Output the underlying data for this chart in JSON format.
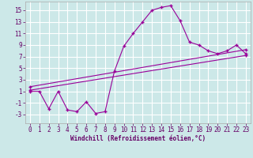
{
  "xlabel": "Windchill (Refroidissement éolien,°C)",
  "background_color": "#cce8e8",
  "grid_color": "#b8d8d8",
  "line_color": "#990099",
  "x_ticks": [
    0,
    1,
    2,
    3,
    4,
    5,
    6,
    7,
    8,
    9,
    10,
    11,
    12,
    13,
    14,
    15,
    16,
    17,
    18,
    19,
    20,
    21,
    22,
    23
  ],
  "y_ticks": [
    -3,
    -1,
    1,
    3,
    5,
    7,
    9,
    11,
    13,
    15
  ],
  "ylim": [
    -4.5,
    16.5
  ],
  "xlim": [
    -0.5,
    23.5
  ],
  "line1_x": [
    0,
    1,
    2,
    3,
    4,
    5,
    6,
    7,
    8,
    9,
    10,
    11,
    12,
    13,
    14,
    15,
    16,
    17,
    18,
    19,
    20,
    21,
    22,
    23
  ],
  "line1_y": [
    1.0,
    1.0,
    -2.0,
    1.0,
    -2.2,
    -2.5,
    -0.8,
    -2.8,
    -2.5,
    4.5,
    8.8,
    11.0,
    13.0,
    15.0,
    15.5,
    15.8,
    13.2,
    9.5,
    9.0,
    8.0,
    7.5,
    8.0,
    9.0,
    7.5
  ],
  "line2_x": [
    0,
    23
  ],
  "line2_y": [
    1.2,
    7.2
  ],
  "line3_x": [
    0,
    23
  ],
  "line3_y": [
    1.8,
    8.2
  ],
  "tick_fontsize": 5.5,
  "xlabel_fontsize": 5.5
}
